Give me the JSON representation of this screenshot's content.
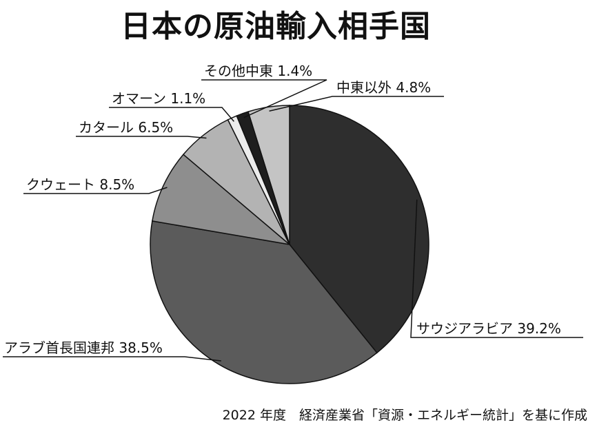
{
  "chart_data": {
    "type": "pie",
    "title": "日本の原油輸入相手国",
    "slices": [
      {
        "label": "サウジアラビア",
        "value": 39.2,
        "value_text": "39.2%",
        "color": "#2e2e2e"
      },
      {
        "label": "アラブ首長国連邦",
        "value": 38.5,
        "value_text": "38.5%",
        "color": "#5b5b5b"
      },
      {
        "label": "クウェート",
        "value": 8.5,
        "value_text": "8.5%",
        "color": "#8e8e8e"
      },
      {
        "label": "カタール",
        "value": 6.5,
        "value_text": "6.5%",
        "color": "#b3b3b3"
      },
      {
        "label": "オマーン",
        "value": 1.1,
        "value_text": "1.1%",
        "color": "#ececec"
      },
      {
        "label": "その他中東",
        "value": 1.4,
        "value_text": "1.4%",
        "color": "#1e1e1e"
      },
      {
        "label": "中東以外",
        "value": 4.8,
        "value_text": "4.8%",
        "color": "#c4c4c4"
      }
    ],
    "start_angle_deg": 0,
    "direction": "clockwise"
  },
  "source": "2022 年度　経済産業省「資源・エネルギー統計」を基に作成"
}
